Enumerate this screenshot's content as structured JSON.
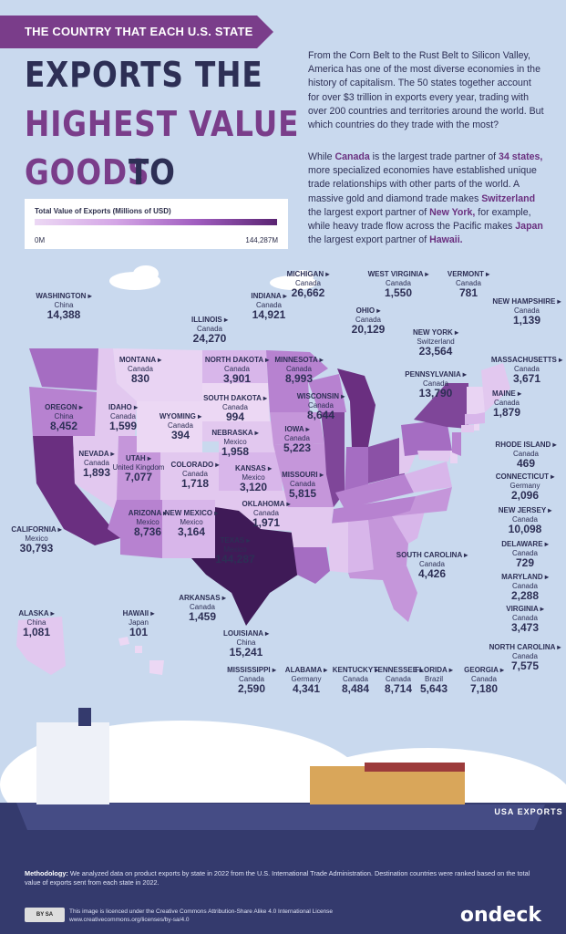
{
  "header": {
    "banner": "THE COUNTRY THAT EACH U.S. STATE",
    "title_line1": "EXPORTS THE",
    "title_line2": "HIGHEST VALUE",
    "title_line3a": "GOODS",
    "title_line3b": "TO"
  },
  "intro": {
    "p1": "From the Corn Belt to the Rust Belt to Silicon Valley, America has one of the most diverse economies in the history of capitalism. The 50 states together account for over $3 trillion in exports every year, trading with over 200 countries and territories around the world. But which countries do they trade with the most?",
    "p2_a": "While ",
    "p2_b": "Canada",
    "p2_c": " is the largest trade partner of ",
    "p2_d": "34 states,",
    "p2_e": " more specialized economies have established unique trade relationships with other parts of the world. A massive gold and diamond trade makes ",
    "p2_f": "Switzerland",
    "p2_g": " the largest export partner of ",
    "p2_h": "New York,",
    "p2_i": " for example, while heavy trade flow across the Pacific makes ",
    "p2_j": "Japan",
    "p2_k": " the largest export partner of ",
    "p2_l": "Hawaii."
  },
  "legend": {
    "title": "Total Value of Exports (Millions of USD)",
    "min": "0M",
    "max": "144,287M",
    "colors": [
      "#ecd8f4",
      "#5a2472"
    ]
  },
  "ship_label": "USA EXPORTS",
  "states": [
    {
      "name": "WASHINGTON",
      "country": "China",
      "value": "14,388"
    },
    {
      "name": "OREGON",
      "country": "China",
      "value": "8,452"
    },
    {
      "name": "CALIFORNIA",
      "country": "Mexico",
      "value": "30,793"
    },
    {
      "name": "IDAHO",
      "country": "Canada",
      "value": "1,599"
    },
    {
      "name": "NEVADA",
      "country": "Canada",
      "value": "1,893"
    },
    {
      "name": "MONTANA",
      "country": "Canada",
      "value": "830"
    },
    {
      "name": "WYOMING",
      "country": "Canada",
      "value": "394"
    },
    {
      "name": "UTAH",
      "country": "United Kingdom",
      "value": "7,077"
    },
    {
      "name": "ARIZONA",
      "country": "Mexico",
      "value": "8,736"
    },
    {
      "name": "COLORADO",
      "country": "Canada",
      "value": "1,718"
    },
    {
      "name": "NEW MEXICO",
      "country": "Mexico",
      "value": "3,164"
    },
    {
      "name": "NORTH DAKOTA",
      "country": "Canada",
      "value": "3,901"
    },
    {
      "name": "SOUTH DAKOTA",
      "country": "Canada",
      "value": "994"
    },
    {
      "name": "NEBRASKA",
      "country": "Mexico",
      "value": "1,958"
    },
    {
      "name": "KANSAS",
      "country": "Mexico",
      "value": "3,120"
    },
    {
      "name": "OKLAHOMA",
      "country": "Canada",
      "value": "1,971"
    },
    {
      "name": "TEXAS",
      "country": "Mexico",
      "value": "144,287"
    },
    {
      "name": "MINNESOTA",
      "country": "Canada",
      "value": "8,993"
    },
    {
      "name": "IOWA",
      "country": "Canada",
      "value": "5,223"
    },
    {
      "name": "MISSOURI",
      "country": "Canada",
      "value": "5,815"
    },
    {
      "name": "WISCONSIN",
      "country": "Canada",
      "value": "8,644"
    },
    {
      "name": "ILLINOIS",
      "country": "Canada",
      "value": "24,270"
    },
    {
      "name": "INDIANA",
      "country": "Canada",
      "value": "14,921"
    },
    {
      "name": "MICHIGAN",
      "country": "Canada",
      "value": "26,662"
    },
    {
      "name": "OHIO",
      "country": "Canada",
      "value": "20,129"
    },
    {
      "name": "WEST VIRGINIA",
      "country": "Canada",
      "value": "1,550"
    },
    {
      "name": "VERMONT",
      "country": "Canada",
      "value": "781"
    },
    {
      "name": "NEW HAMPSHIRE",
      "country": "Canada",
      "value": "1,139"
    },
    {
      "name": "NEW YORK",
      "country": "Switzerland",
      "value": "23,564"
    },
    {
      "name": "PENNSYLVANIA",
      "country": "Canada",
      "value": "13,790"
    },
    {
      "name": "MASSACHUSETTS",
      "country": "Canada",
      "value": "3,671"
    },
    {
      "name": "MAINE",
      "country": "Canada",
      "value": "1,879"
    },
    {
      "name": "RHODE ISLAND",
      "country": "Canada",
      "value": "469"
    },
    {
      "name": "CONNECTICUT",
      "country": "Germany",
      "value": "2,096"
    },
    {
      "name": "NEW JERSEY",
      "country": "Canada",
      "value": "10,098"
    },
    {
      "name": "DELAWARE",
      "country": "Canada",
      "value": "729"
    },
    {
      "name": "MARYLAND",
      "country": "Canada",
      "value": "2,288"
    },
    {
      "name": "VIRGINIA",
      "country": "Canada",
      "value": "3,473"
    },
    {
      "name": "NORTH CAROLINA",
      "country": "Canada",
      "value": "7,575"
    },
    {
      "name": "SOUTH CAROLINA",
      "country": "Canada",
      "value": "4,426"
    },
    {
      "name": "GEORGIA",
      "country": "Canada",
      "value": "7,180"
    },
    {
      "name": "FLORIDA",
      "country": "Brazil",
      "value": "5,643"
    },
    {
      "name": "TENNESSEE",
      "country": "Canada",
      "value": "8,714"
    },
    {
      "name": "KENTUCKY",
      "country": "Canada",
      "value": "8,484"
    },
    {
      "name": "ALABAMA",
      "country": "Germany",
      "value": "4,341"
    },
    {
      "name": "MISSISSIPPI",
      "country": "Canada",
      "value": "2,590"
    },
    {
      "name": "LOUISIANA",
      "country": "China",
      "value": "15,241"
    },
    {
      "name": "ARKANSAS",
      "country": "Canada",
      "value": "1,459"
    },
    {
      "name": "ALASKA",
      "country": "China",
      "value": "1,081"
    },
    {
      "name": "HAWAII",
      "country": "Japan",
      "value": "101"
    }
  ],
  "footer": {
    "method_label": "Methodology:",
    "method_text": " We analyzed data on product exports by state in 2022 from the U.S. International Trade Administration. Destination countries were ranked based on the total value of exports sent from each state in 2022.",
    "license_line1": "This image is licenced under the Creative Commons Attribution-Share Alike 4.0 International License",
    "license_line2": "www.creativecommons.org/licenses/by-sa/4.0",
    "cc_badge": "BY SA",
    "brand": "ondeck"
  }
}
